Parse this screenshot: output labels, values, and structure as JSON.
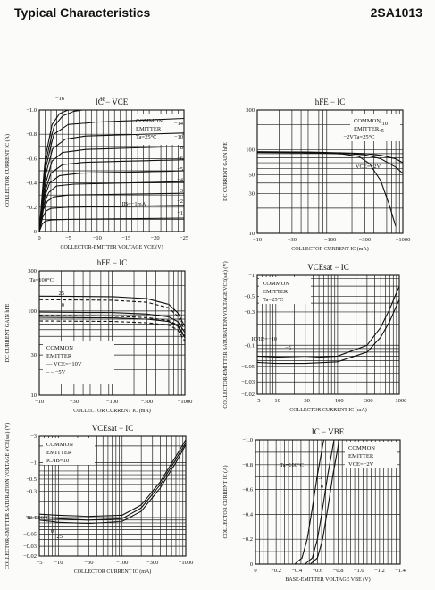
{
  "header": {
    "left": "Typical Characteristics",
    "right": "2SA1013"
  },
  "chart_data": [
    {
      "id": "c1",
      "type": "line",
      "scale": "linear-linear",
      "title": "IC − VCE",
      "xlabel": "COLLECTOR-EMITTER VOLTAGE   VCE   (V)",
      "ylabel": "COLLECTOR CURRENT   IC   (A)",
      "xlim": [
        0,
        -25
      ],
      "ylim": [
        0,
        -1.0
      ],
      "xticks": [
        0,
        -5,
        -10,
        -15,
        -20,
        -25
      ],
      "xtick_labels": [
        "0",
        "−5",
        "−10",
        "−15",
        "−20",
        "−25"
      ],
      "yticks": [
        0,
        -0.2,
        -0.4,
        -0.6,
        -0.8,
        -1.0
      ],
      "ytick_labels": [
        "0",
        "−0.2",
        "−0.4",
        "−0.6",
        "−0.8",
        "−1.0"
      ],
      "legend": [
        "COMMON",
        "EMITTER",
        "Ta=25°C"
      ],
      "param_note": "IB=−1mA",
      "series": [
        {
          "name": "−1",
          "values": [
            [
              0,
              0
            ],
            [
              -0.5,
              -0.06
            ],
            [
              -1,
              -0.085
            ],
            [
              -2,
              -0.095
            ],
            [
              -5,
              -0.1
            ],
            [
              -25,
              -0.11
            ]
          ]
        },
        {
          "name": "−2",
          "values": [
            [
              0,
              0
            ],
            [
              -0.6,
              -0.12
            ],
            [
              -1.2,
              -0.17
            ],
            [
              -2,
              -0.19
            ],
            [
              -5,
              -0.2
            ],
            [
              -25,
              -0.215
            ]
          ]
        },
        {
          "name": "−3",
          "values": [
            [
              0,
              0
            ],
            [
              -0.7,
              -0.18
            ],
            [
              -1.4,
              -0.25
            ],
            [
              -2.5,
              -0.285
            ],
            [
              -5,
              -0.3
            ],
            [
              -25,
              -0.315
            ]
          ]
        },
        {
          "name": "−4",
          "values": [
            [
              0,
              0
            ],
            [
              -0.8,
              -0.22
            ],
            [
              -1.6,
              -0.32
            ],
            [
              -3,
              -0.375
            ],
            [
              -6,
              -0.39
            ],
            [
              -25,
              -0.41
            ]
          ]
        },
        {
          "name": "−5",
          "values": [
            [
              0,
              0
            ],
            [
              -0.9,
              -0.28
            ],
            [
              -1.8,
              -0.4
            ],
            [
              -3.5,
              -0.46
            ],
            [
              -7,
              -0.48
            ],
            [
              -25,
              -0.5
            ]
          ]
        },
        {
          "name": "−6",
          "values": [
            [
              0,
              0
            ],
            [
              -1,
              -0.33
            ],
            [
              -2,
              -0.48
            ],
            [
              -4,
              -0.55
            ],
            [
              -8,
              -0.57
            ],
            [
              -25,
              -0.59
            ]
          ]
        },
        {
          "name": "−8",
          "values": [
            [
              0,
              0
            ],
            [
              -1,
              -0.38
            ],
            [
              -2.2,
              -0.58
            ],
            [
              -4,
              -0.65
            ],
            [
              -8,
              -0.675
            ],
            [
              -25,
              -0.7
            ]
          ]
        },
        {
          "name": "−10",
          "values": [
            [
              0,
              0
            ],
            [
              -1,
              -0.45
            ],
            [
              -2.3,
              -0.68
            ],
            [
              -4.5,
              -0.76
            ],
            [
              -8,
              -0.785
            ],
            [
              -25,
              -0.81
            ]
          ]
        },
        {
          "name": "−14",
          "values": [
            [
              0,
              0
            ],
            [
              -1,
              -0.5
            ],
            [
              -2.5,
              -0.8
            ],
            [
              -5,
              -0.88
            ],
            [
              -10,
              -0.9
            ],
            [
              -25,
              -0.93
            ]
          ]
        },
        {
          "name": "−16",
          "values": [
            [
              0,
              0
            ],
            [
              -1,
              -0.55
            ],
            [
              -2.5,
              -0.86
            ],
            [
              -4,
              -0.95
            ],
            [
              -6,
              -0.99
            ],
            [
              -7.5,
              -1.0
            ]
          ]
        },
        {
          "name": "18",
          "values": [
            [
              0,
              0
            ],
            [
              -1,
              -0.6
            ],
            [
              -2.2,
              -0.88
            ],
            [
              -3.5,
              -0.97
            ],
            [
              -5,
              -1.0
            ]
          ]
        }
      ]
    },
    {
      "id": "c2",
      "type": "line",
      "scale": "log-log",
      "title": "hFE − IC",
      "xlabel": "COLLECTOR CURRENT   IC   (mA)",
      "ylabel": "DC CURRENT GAIN   hFE",
      "xlim": [
        -10,
        -1000
      ],
      "ylim": [
        10,
        300
      ],
      "xticks": [
        -10,
        -30,
        -100,
        -300,
        -1000
      ],
      "xtick_labels": [
        "−10",
        "−30",
        "−100",
        "−300",
        "−1000"
      ],
      "yticks": [
        10,
        30,
        50,
        100,
        300
      ],
      "ytick_labels": [
        "10",
        "30",
        "50",
        "100",
        "300"
      ],
      "legend": [
        "COMMON",
        "EMITTER",
        "Ta=25°C"
      ],
      "param_note": "VCE=−2V",
      "series": [
        {
          "name": "−10",
          "values": [
            [
              -10,
              95
            ],
            [
              -50,
              94
            ],
            [
              -150,
              92
            ],
            [
              -300,
              90
            ],
            [
              -500,
              86
            ],
            [
              -800,
              78
            ],
            [
              -1000,
              70
            ]
          ]
        },
        {
          "name": "−5",
          "values": [
            [
              -10,
              94
            ],
            [
              -50,
              93
            ],
            [
              -150,
              91
            ],
            [
              -300,
              87
            ],
            [
              -500,
              78
            ],
            [
              -800,
              62
            ],
            [
              -1000,
              52
            ]
          ]
        },
        {
          "name": "−2V",
          "values": [
            [
              -10,
              93
            ],
            [
              -50,
              92
            ],
            [
              -150,
              89
            ],
            [
              -250,
              83
            ],
            [
              -350,
              68
            ],
            [
              -500,
              42
            ],
            [
              -650,
              22
            ],
            [
              -800,
              12
            ]
          ]
        }
      ]
    },
    {
      "id": "c3",
      "type": "line",
      "scale": "log-log",
      "title": "hFE − IC",
      "xlabel": "COLLECTOR CURRENT   IC   (mA)",
      "ylabel": "DC CURRENT GAIN   hFE",
      "xlim": [
        -10,
        -1000
      ],
      "ylim": [
        10,
        300
      ],
      "xticks": [
        -10,
        -30,
        -100,
        -300,
        -1000
      ],
      "xtick_labels": [
        "−10",
        "−30",
        "−100",
        "−300",
        "−1000"
      ],
      "yticks": [
        10,
        30,
        100,
        300
      ],
      "ytick_labels": [
        "10",
        "30",
        "100",
        "300"
      ],
      "legend": [
        "COMMON",
        "EMITTER",
        "— VCE=−10V",
        "– – −5V"
      ],
      "series": [
        {
          "name": "Ta=100°C",
          "values": [
            [
              -10,
              150
            ],
            [
              -100,
              148
            ],
            [
              -300,
              140
            ],
            [
              -600,
              120
            ],
            [
              -800,
              95
            ],
            [
              -1000,
              65
            ]
          ]
        },
        {
          "name": "25",
          "values": [
            [
              -10,
              97
            ],
            [
              -100,
              96
            ],
            [
              -300,
              92
            ],
            [
              -600,
              85
            ],
            [
              -800,
              75
            ],
            [
              -1000,
              55
            ]
          ]
        },
        {
          "name": "0",
          "values": [
            [
              -10,
              84
            ],
            [
              -100,
              83
            ],
            [
              -300,
              80
            ],
            [
              -600,
              75
            ],
            [
              -800,
              66
            ],
            [
              -1000,
              48
            ]
          ]
        }
      ]
    },
    {
      "id": "c4",
      "type": "line",
      "scale": "log-log",
      "title": "VCEsat − IC",
      "xlabel": "COLLECTOR CURRENT   IC   (mA)",
      "ylabel": "COLLECTOR-EMITTER SATURATION VOLTAGE   VCE(sat)   (V)",
      "xlim": [
        -5,
        -1000
      ],
      "ylim": [
        -0.02,
        -1.0
      ],
      "xticks": [
        -5,
        -10,
        -30,
        -100,
        -300,
        -1000
      ],
      "xtick_labels": [
        "−5",
        "−10",
        "−30",
        "−100",
        "−300",
        "−1000"
      ],
      "yticks": [
        -0.02,
        -0.03,
        -0.05,
        -0.1,
        -0.3,
        -0.5,
        -1.0
      ],
      "ytick_labels": [
        "−0.02",
        "−0.03",
        "−0.05",
        "−0.1",
        "−0.3",
        "−0.5",
        "−1"
      ],
      "legend": [
        "COMMON",
        "EMITTER",
        "Ta=25°C"
      ],
      "series": [
        {
          "name": "IC/IB=−10",
          "values": [
            [
              -5,
              0.07
            ],
            [
              -10,
              0.068
            ],
            [
              -30,
              0.066
            ],
            [
              -100,
              0.07
            ],
            [
              -300,
              0.1
            ],
            [
              -500,
              0.18
            ],
            [
              -700,
              0.33
            ],
            [
              -1000,
              0.7
            ]
          ]
        },
        {
          "name": "−5",
          "values": [
            [
              -5,
              0.057
            ],
            [
              -10,
              0.055
            ],
            [
              -30,
              0.055
            ],
            [
              -100,
              0.058
            ],
            [
              -300,
              0.08
            ],
            [
              -500,
              0.13
            ],
            [
              -700,
              0.22
            ],
            [
              -1000,
              0.45
            ]
          ]
        }
      ]
    },
    {
      "id": "c5",
      "type": "line",
      "scale": "log-log",
      "title": "VCEsat − IC",
      "xlabel": "COLLECTOR CURRENT   IC   (mA)",
      "ylabel": "COLLECTOR-EMITTER SATURATION VOLTAGE   VCE(sat)   (V)",
      "xlim": [
        -5,
        -1000
      ],
      "ylim": [
        -0.02,
        -3.0
      ],
      "xticks": [
        -5,
        -10,
        -30,
        -100,
        -300,
        -1000
      ],
      "xtick_labels": [
        "−5",
        "−10",
        "−30",
        "−100",
        "−300",
        "−1000"
      ],
      "yticks": [
        -0.02,
        -0.03,
        -0.05,
        -0.1,
        -0.3,
        -0.5,
        -1.0,
        -3.0
      ],
      "ytick_labels": [
        "−0.02",
        "−0.03",
        "−0.05",
        "−0.1",
        "−0.3",
        "−0.5",
        "−1",
        "−3"
      ],
      "legend": [
        "COMMON",
        "EMITTER",
        "IC/IB=10"
      ],
      "series": [
        {
          "name": "Ta=100°C",
          "values": [
            [
              -5,
              0.115
            ],
            [
              -10,
              0.11
            ],
            [
              -30,
              0.105
            ],
            [
              -100,
              0.11
            ],
            [
              -200,
              0.17
            ],
            [
              -400,
              0.45
            ],
            [
              -700,
              1.3
            ],
            [
              -1000,
              2.6
            ]
          ]
        },
        {
          "name": "0",
          "values": [
            [
              -5,
              0.1
            ],
            [
              -10,
              0.095
            ],
            [
              -30,
              0.09
            ],
            [
              -100,
              0.095
            ],
            [
              -200,
              0.15
            ],
            [
              -400,
              0.4
            ],
            [
              -700,
              1.15
            ],
            [
              -1000,
              2.3
            ]
          ]
        },
        {
          "name": "25",
          "values": [
            [
              -5,
              0.09
            ],
            [
              -10,
              0.082
            ],
            [
              -30,
              0.078
            ],
            [
              -100,
              0.085
            ],
            [
              -200,
              0.13
            ],
            [
              -400,
              0.35
            ],
            [
              -700,
              1.0
            ],
            [
              -1000,
              2.1
            ]
          ]
        }
      ]
    },
    {
      "id": "c6",
      "type": "line",
      "scale": "linear-linear",
      "title": "IC − VBE",
      "xlabel": "BASE-EMITTER VOLTAGE   VBE   (V)",
      "ylabel": "COLLECTOR CURRENT   IC   (A)",
      "xlim": [
        0,
        -1.4
      ],
      "ylim": [
        0,
        -1.0
      ],
      "xticks": [
        0,
        -0.2,
        -0.4,
        -0.6,
        -0.8,
        -1.0,
        -1.2,
        -1.4
      ],
      "xtick_labels": [
        "0",
        "−0.2",
        "−0.4",
        "−0.6",
        "−0.8",
        "−1.0",
        "−1.2",
        "−1.4"
      ],
      "yticks": [
        0,
        -0.2,
        -0.4,
        -0.6,
        -0.8,
        -1.0
      ],
      "ytick_labels": [
        "0",
        "−0.2",
        "−0.4",
        "−0.6",
        "−0.8",
        "−1.0"
      ],
      "legend": [
        "COMMON",
        "EMITTER",
        "VCE=−2V"
      ],
      "series": [
        {
          "name": "Ta=100°C",
          "values": [
            [
              -0.38,
              0
            ],
            [
              -0.45,
              -0.05
            ],
            [
              -0.5,
              -0.2
            ],
            [
              -0.55,
              -0.45
            ],
            [
              -0.6,
              -0.72
            ],
            [
              -0.66,
              -1.0
            ]
          ]
        },
        {
          "name": "25",
          "values": [
            [
              -0.48,
              0
            ],
            [
              -0.55,
              -0.05
            ],
            [
              -0.6,
              -0.2
            ],
            [
              -0.65,
              -0.45
            ],
            [
              -0.7,
              -0.72
            ],
            [
              -0.76,
              -1.0
            ]
          ]
        },
        {
          "name": "0",
          "values": [
            [
              -0.53,
              0
            ],
            [
              -0.6,
              -0.05
            ],
            [
              -0.65,
              -0.2
            ],
            [
              -0.7,
              -0.45
            ],
            [
              -0.75,
              -0.72
            ],
            [
              -0.81,
              -1.0
            ]
          ]
        }
      ]
    }
  ]
}
